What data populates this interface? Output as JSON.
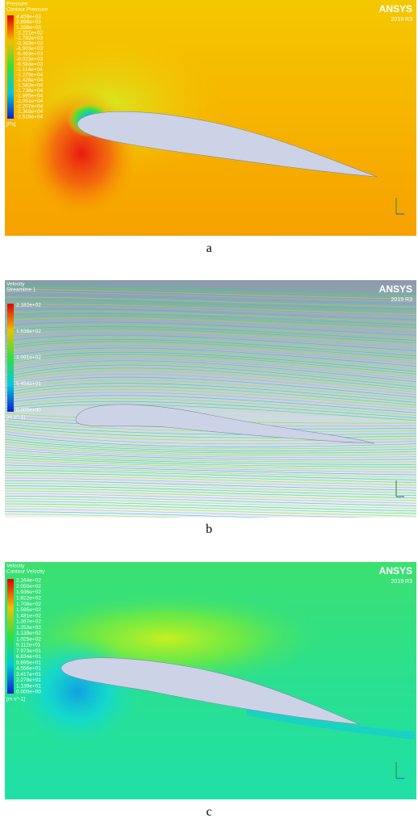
{
  "panels": [
    {
      "legend_title": "Pressure",
      "legend_subtitle": "Contour Pressure",
      "legend_labels": [
        "4.459e+03",
        "2.898e+03",
        "1.338e+03",
        "-2.221e+02",
        "-1.782e+03",
        "-3.343e+03",
        "-4.903e+03",
        "-6.463e+03",
        "-8.023e+03",
        "-9.584e+03",
        "-1.114e+04",
        "-1.270e+04",
        "-1.426e+04",
        "-1.582e+04",
        "-1.738e+04",
        "-1.895e+04",
        "-2.051e+04",
        "-2.207e+04",
        "-2.363e+04",
        "-2.519e+04"
      ],
      "unit": "[Pa]",
      "brand": "ANSYS",
      "version": "2019 R3",
      "caption": "a"
    },
    {
      "legend_title": "Velocity",
      "legend_subtitle": "Streamline 1",
      "legend_labels": [
        "2.182e+02",
        "1.636e+02",
        "1.091e+02",
        "5.454e+01",
        "0.000e+00"
      ],
      "unit": "[m s^-1]",
      "brand": "ANSYS",
      "version": "2019 R3",
      "caption": "b"
    },
    {
      "legend_title": "Velocity",
      "legend_subtitle": "Contour Velocity",
      "legend_labels": [
        "2.164e+02",
        "2.050e+02",
        "1.936e+02",
        "1.822e+02",
        "1.708e+02",
        "1.595e+02",
        "1.481e+02",
        "1.367e+02",
        "1.253e+02",
        "1.139e+02",
        "1.025e+02",
        "9.112e+01",
        "7.973e+01",
        "6.834e+01",
        "5.695e+01",
        "4.556e+01",
        "3.417e+01",
        "2.278e+01",
        "1.139e+01",
        "0.000e+00"
      ],
      "unit": "[m s^-1]",
      "brand": "ANSYS",
      "version": "2019 R3",
      "caption": "c"
    }
  ]
}
